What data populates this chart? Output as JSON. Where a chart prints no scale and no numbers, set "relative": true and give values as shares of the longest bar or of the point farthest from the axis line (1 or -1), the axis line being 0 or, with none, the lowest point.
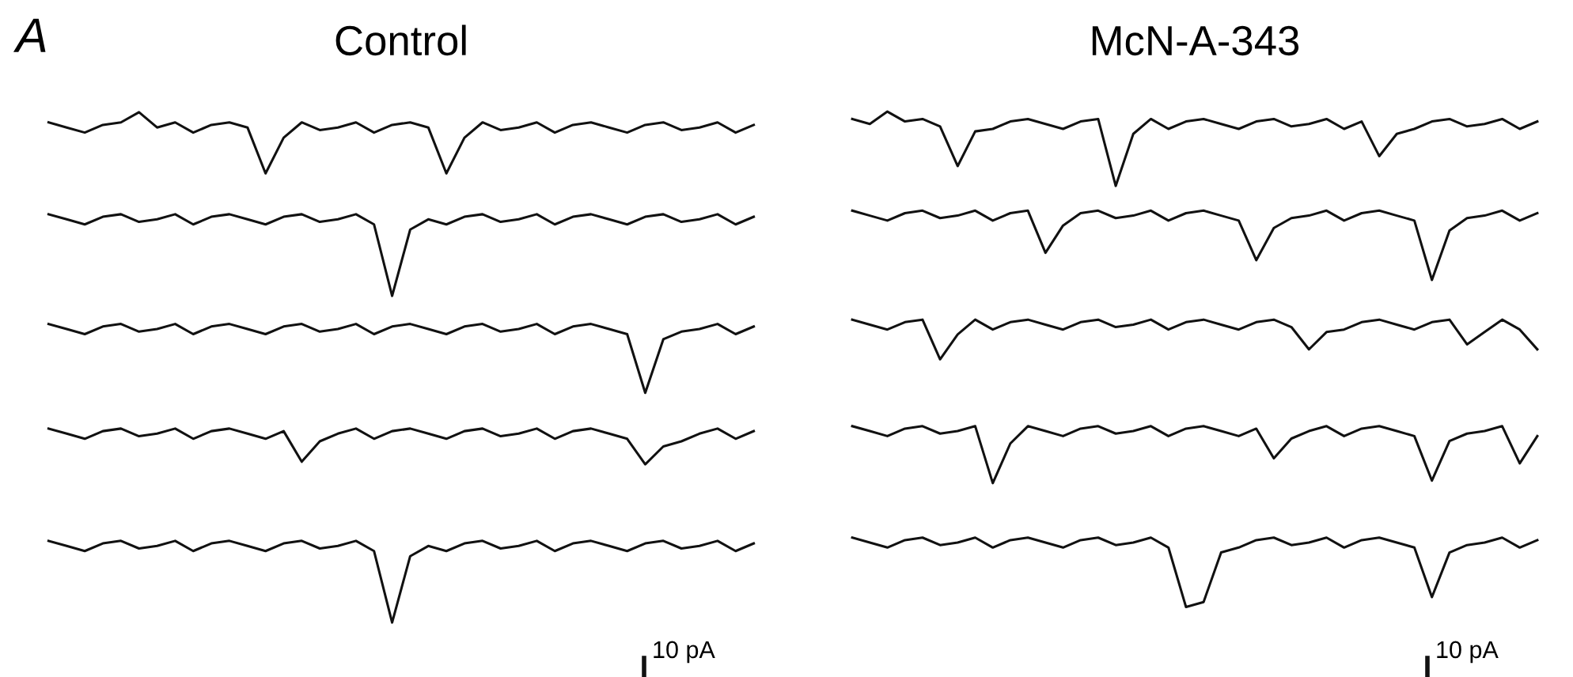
{
  "chart_data": [
    {
      "type": "line",
      "title": "Control",
      "relative": true,
      "annotations": [
        "A",
        "10 pA"
      ],
      "categories": [
        null,
        null,
        null,
        null,
        null,
        null,
        null,
        null,
        null,
        null,
        null,
        null,
        null,
        null,
        null,
        null,
        null,
        null,
        null,
        null,
        null,
        null,
        null,
        null,
        null,
        null,
        null,
        null,
        null,
        null,
        null,
        null,
        null,
        null,
        null,
        null,
        null,
        null,
        null,
        null
      ],
      "series": [
        {
          "color": "#111111",
          "values": [
            0.98,
            0.97,
            0.96,
            0.975,
            0.98,
            1,
            0.97,
            0.98,
            0.96,
            0.975,
            0.98,
            0.97,
            0.88,
            0.95,
            0.98,
            0.965,
            0.97,
            0.98,
            0.96,
            0.975,
            0.98,
            0.97,
            0.88,
            0.95,
            0.98,
            0.965,
            0.97,
            0.98,
            0.96,
            0.975,
            0.98,
            0.97,
            0.96,
            0.975,
            0.98,
            0.965,
            0.97,
            0.98,
            0.96,
            0.975
          ]
        },
        {
          "color": "#111111",
          "values": [
            0.8,
            0.79,
            0.78,
            0.795,
            0.8,
            0.785,
            0.79,
            0.8,
            0.78,
            0.795,
            0.8,
            0.79,
            0.78,
            0.795,
            0.8,
            0.785,
            0.79,
            0.8,
            0.78,
            0.64,
            0.77,
            0.79,
            0.78,
            0.795,
            0.8,
            0.785,
            0.79,
            0.8,
            0.78,
            0.795,
            0.8,
            0.79,
            0.78,
            0.795,
            0.8,
            0.785,
            0.79,
            0.8,
            0.78,
            0.795
          ]
        },
        {
          "color": "#111111",
          "values": [
            0.585,
            0.575,
            0.565,
            0.58,
            0.585,
            0.57,
            0.575,
            0.585,
            0.565,
            0.58,
            0.585,
            0.575,
            0.565,
            0.58,
            0.585,
            0.57,
            0.575,
            0.585,
            0.565,
            0.58,
            0.585,
            0.575,
            0.565,
            0.58,
            0.585,
            0.57,
            0.575,
            0.585,
            0.565,
            0.58,
            0.585,
            0.575,
            0.565,
            0.45,
            0.555,
            0.57,
            0.575,
            0.585,
            0.565,
            0.58
          ]
        },
        {
          "color": "#111111",
          "values": [
            0.38,
            0.37,
            0.36,
            0.375,
            0.38,
            0.365,
            0.37,
            0.38,
            0.36,
            0.375,
            0.38,
            0.37,
            0.36,
            0.375,
            0.315,
            0.355,
            0.37,
            0.38,
            0.36,
            0.375,
            0.38,
            0.37,
            0.36,
            0.375,
            0.38,
            0.365,
            0.37,
            0.38,
            0.36,
            0.375,
            0.38,
            0.37,
            0.36,
            0.31,
            0.345,
            0.355,
            0.37,
            0.38,
            0.36,
            0.375
          ]
        },
        {
          "color": "#111111",
          "values": [
            0.16,
            0.15,
            0.14,
            0.155,
            0.16,
            0.145,
            0.15,
            0.16,
            0.14,
            0.155,
            0.16,
            0.15,
            0.14,
            0.155,
            0.16,
            0.145,
            0.15,
            0.16,
            0.14,
            0,
            0.13,
            0.15,
            0.14,
            0.155,
            0.16,
            0.145,
            0.15,
            0.16,
            0.14,
            0.155,
            0.16,
            0.15,
            0.14,
            0.155,
            0.16,
            0.145,
            0.15,
            0.16,
            0.14,
            0.155
          ]
        }
      ]
    },
    {
      "type": "line",
      "title": "McN-A-343",
      "relative": true,
      "annotations": [
        "10 pA"
      ],
      "categories": [
        null,
        null,
        null,
        null,
        null,
        null,
        null,
        null,
        null,
        null,
        null,
        null,
        null,
        null,
        null,
        null,
        null,
        null,
        null,
        null,
        null,
        null,
        null,
        null,
        null,
        null,
        null,
        null,
        null,
        null,
        null,
        null,
        null,
        null,
        null,
        null,
        null,
        null,
        null,
        null
      ],
      "series": [
        {
          "color": "#111111",
          "values": [
            0.985,
            0.975,
            1,
            0.98,
            0.985,
            0.97,
            0.89,
            0.96,
            0.965,
            0.98,
            0.985,
            0.975,
            0.965,
            0.98,
            0.985,
            0.85,
            0.955,
            0.985,
            0.965,
            0.98,
            0.985,
            0.975,
            0.965,
            0.98,
            0.985,
            0.97,
            0.975,
            0.985,
            0.965,
            0.98,
            0.91,
            0.955,
            0.965,
            0.98,
            0.985,
            0.97,
            0.975,
            0.985,
            0.965,
            0.98
          ]
        },
        {
          "color": "#111111",
          "values": [
            0.8,
            0.79,
            0.78,
            0.795,
            0.8,
            0.785,
            0.79,
            0.8,
            0.78,
            0.795,
            0.8,
            0.715,
            0.77,
            0.795,
            0.8,
            0.785,
            0.79,
            0.8,
            0.78,
            0.795,
            0.8,
            0.79,
            0.78,
            0.7,
            0.765,
            0.785,
            0.79,
            0.8,
            0.78,
            0.795,
            0.8,
            0.79,
            0.78,
            0.66,
            0.76,
            0.785,
            0.79,
            0.8,
            0.78,
            0.795
          ]
        },
        {
          "color": "#111111",
          "values": [
            0.58,
            0.57,
            0.56,
            0.575,
            0.58,
            0.5,
            0.55,
            0.58,
            0.56,
            0.575,
            0.58,
            0.57,
            0.56,
            0.575,
            0.58,
            0.565,
            0.57,
            0.58,
            0.56,
            0.575,
            0.58,
            0.57,
            0.56,
            0.575,
            0.58,
            0.565,
            0.52,
            0.555,
            0.56,
            0.575,
            0.58,
            0.57,
            0.56,
            0.575,
            0.58,
            0.53,
            0.555,
            0.58,
            0.56,
            0.52
          ]
        },
        {
          "color": "#111111",
          "values": [
            0.365,
            0.355,
            0.345,
            0.36,
            0.365,
            0.35,
            0.355,
            0.365,
            0.25,
            0.33,
            0.365,
            0.355,
            0.345,
            0.36,
            0.365,
            0.35,
            0.355,
            0.365,
            0.345,
            0.36,
            0.365,
            0.355,
            0.345,
            0.36,
            0.3,
            0.34,
            0.355,
            0.365,
            0.345,
            0.36,
            0.365,
            0.355,
            0.345,
            0.255,
            0.335,
            0.35,
            0.355,
            0.365,
            0.29,
            0.345
          ]
        },
        {
          "color": "#111111",
          "values": [
            0.14,
            0.13,
            0.12,
            0.135,
            0.14,
            0.125,
            0.13,
            0.14,
            0.12,
            0.135,
            0.14,
            0.13,
            0.12,
            0.135,
            0.14,
            0.125,
            0.13,
            0.14,
            0.12,
            0,
            0.01,
            0.11,
            0.12,
            0.135,
            0.14,
            0.125,
            0.13,
            0.14,
            0.12,
            0.135,
            0.14,
            0.13,
            0.12,
            0.02,
            0.11,
            0.125,
            0.13,
            0.14,
            0.12,
            0.135
          ]
        }
      ]
    }
  ]
}
